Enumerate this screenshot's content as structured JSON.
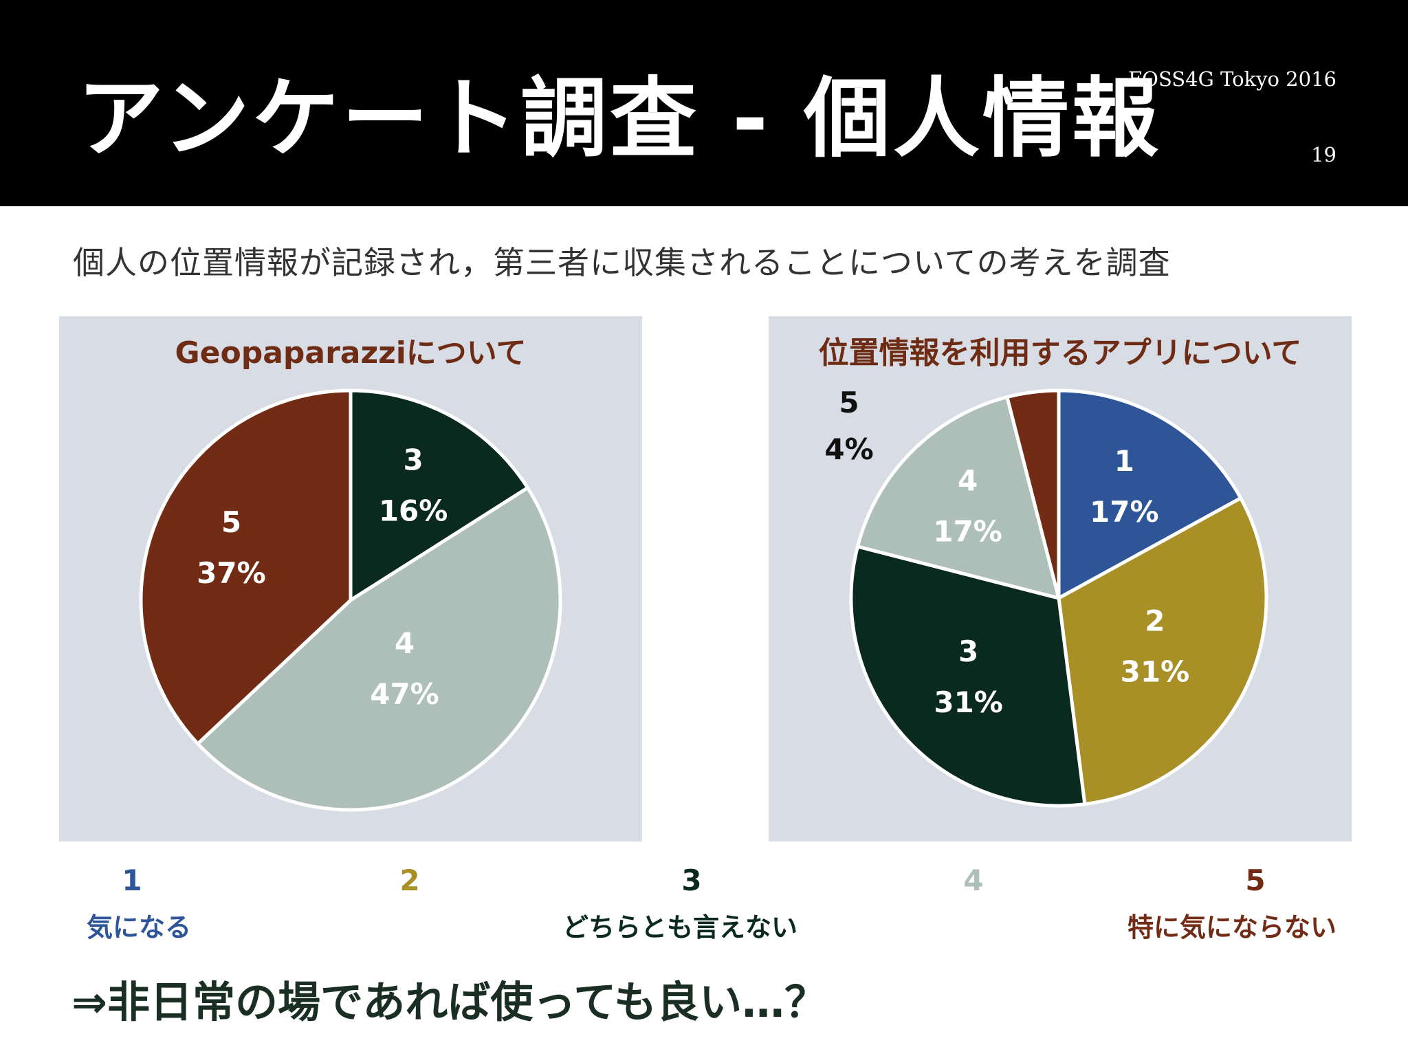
{
  "slide": {
    "title": "アンケート調査 - 個人情報",
    "conference": "FOSS4G Tokyo 2016",
    "page_number": "19",
    "subtitle": "個人の位置情報が記録され，第三者に収集されることについての考えを調査",
    "conclusion": "⇒非日常の場であれば使っても良い…？"
  },
  "colors": {
    "1": "#2e5597",
    "2": "#a88f26",
    "3": "#0b2a1f",
    "4": "#aebfb9",
    "5": "#722c15",
    "panel": "#d8dce4",
    "chart_title": "#6e2c15"
  },
  "legend": [
    {
      "key": "1",
      "label": "1",
      "desc": "気になる",
      "color": "#2e5597"
    },
    {
      "key": "2",
      "label": "2",
      "desc": "",
      "color": "#a88f26"
    },
    {
      "key": "3",
      "label": "3",
      "desc": "どちらとも言えない",
      "color": "#0b2a1f"
    },
    {
      "key": "4",
      "label": "4",
      "desc": "",
      "color": "#aebfb9"
    },
    {
      "key": "5",
      "label": "5",
      "desc": "特に気にならない",
      "color": "#722c15"
    }
  ],
  "chart_data": [
    {
      "type": "pie",
      "title": "Geopaparazziについて",
      "categories": [
        "3",
        "4",
        "5"
      ],
      "values": [
        16,
        47,
        37
      ],
      "labels": [
        "16%",
        "47%",
        "37%"
      ],
      "colors": [
        "#0b2a1f",
        "#aebfb9",
        "#722c15"
      ],
      "label_colors": [
        "#ffffff",
        "#ffffff",
        "#ffffff"
      ]
    },
    {
      "type": "pie",
      "title": "位置情報を利用するアプリについて",
      "categories": [
        "1",
        "2",
        "3",
        "4",
        "5"
      ],
      "values": [
        17,
        31,
        31,
        17,
        4
      ],
      "labels": [
        "17%",
        "31%",
        "31%",
        "17%",
        "4%"
      ],
      "colors": [
        "#2e5597",
        "#a88f26",
        "#0b2a1f",
        "#aebfb9",
        "#722c15"
      ],
      "label_colors": [
        "#ffffff",
        "#ffffff",
        "#ffffff",
        "#ffffff",
        "#111111"
      ]
    }
  ]
}
